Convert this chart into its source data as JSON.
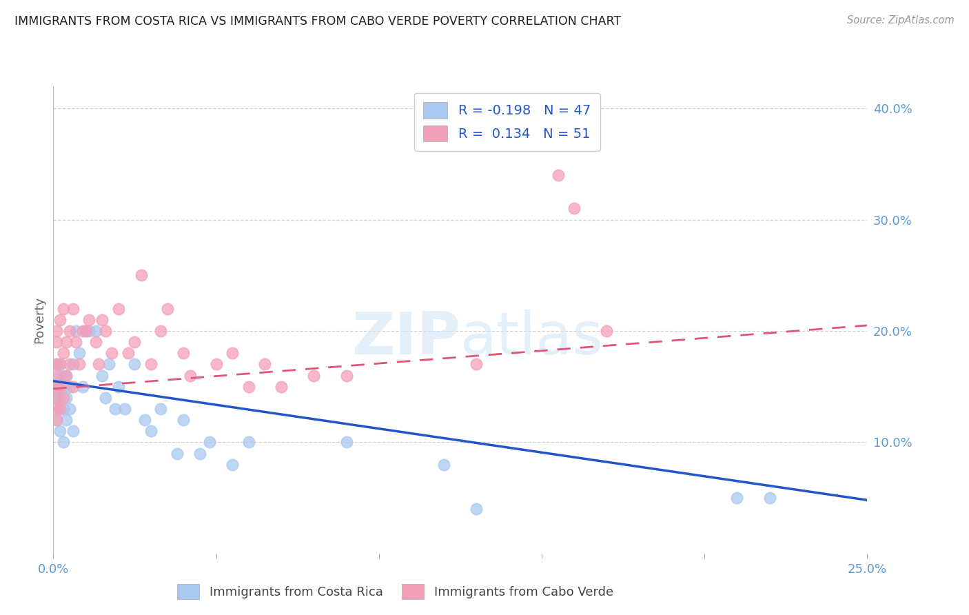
{
  "title": "IMMIGRANTS FROM COSTA RICA VS IMMIGRANTS FROM CABO VERDE POVERTY CORRELATION CHART",
  "source": "Source: ZipAtlas.com",
  "ylabel": "Poverty",
  "xlim": [
    0.0,
    0.25
  ],
  "ylim": [
    0.0,
    0.42
  ],
  "costa_rica_color": "#a8c8ef",
  "cabo_verde_color": "#f4a0b8",
  "costa_rica_line_color": "#2255cc",
  "cabo_verde_line_color": "#e05575",
  "legend_label_1": "Immigrants from Costa Rica",
  "legend_label_2": "Immigrants from Cabo Verde",
  "watermark_zip": "ZIP",
  "watermark_atlas": "atlas",
  "background_color": "#ffffff",
  "grid_color": "#cccccc",
  "axis_label_color": "#5b9bd5",
  "title_color": "#222222",
  "costa_rica_R": -0.198,
  "costa_rica_N": 47,
  "cabo_verde_R": 0.134,
  "cabo_verde_N": 51,
  "cr_trend_x0": 0.0,
  "cr_trend_y0": 0.155,
  "cr_trend_x1": 0.25,
  "cr_trend_y1": 0.048,
  "cv_trend_x0": 0.0,
  "cv_trend_y0": 0.148,
  "cv_trend_x1": 0.25,
  "cv_trend_y1": 0.205,
  "cr_x": [
    0.001,
    0.001,
    0.001,
    0.001,
    0.002,
    0.002,
    0.002,
    0.002,
    0.002,
    0.003,
    0.003,
    0.003,
    0.003,
    0.004,
    0.004,
    0.004,
    0.005,
    0.005,
    0.006,
    0.006,
    0.007,
    0.008,
    0.009,
    0.01,
    0.011,
    0.013,
    0.015,
    0.016,
    0.017,
    0.019,
    0.02,
    0.022,
    0.025,
    0.028,
    0.03,
    0.033,
    0.038,
    0.04,
    0.045,
    0.048,
    0.055,
    0.06,
    0.09,
    0.12,
    0.13,
    0.21,
    0.22
  ],
  "cr_y": [
    0.14,
    0.15,
    0.17,
    0.12,
    0.16,
    0.13,
    0.11,
    0.14,
    0.17,
    0.15,
    0.13,
    0.1,
    0.16,
    0.14,
    0.12,
    0.16,
    0.15,
    0.13,
    0.17,
    0.11,
    0.2,
    0.18,
    0.15,
    0.2,
    0.2,
    0.2,
    0.16,
    0.14,
    0.17,
    0.13,
    0.15,
    0.13,
    0.17,
    0.12,
    0.11,
    0.13,
    0.09,
    0.12,
    0.09,
    0.1,
    0.08,
    0.1,
    0.1,
    0.08,
    0.04,
    0.05,
    0.05
  ],
  "cv_x": [
    0.001,
    0.001,
    0.001,
    0.001,
    0.001,
    0.001,
    0.001,
    0.001,
    0.002,
    0.002,
    0.002,
    0.002,
    0.003,
    0.003,
    0.003,
    0.004,
    0.004,
    0.005,
    0.005,
    0.006,
    0.006,
    0.007,
    0.008,
    0.009,
    0.01,
    0.011,
    0.013,
    0.014,
    0.015,
    0.016,
    0.018,
    0.02,
    0.023,
    0.025,
    0.027,
    0.03,
    0.033,
    0.035,
    0.04,
    0.042,
    0.05,
    0.055,
    0.06,
    0.065,
    0.07,
    0.08,
    0.09,
    0.13,
    0.155,
    0.16,
    0.17
  ],
  "cv_y": [
    0.13,
    0.15,
    0.17,
    0.19,
    0.14,
    0.12,
    0.16,
    0.2,
    0.13,
    0.17,
    0.21,
    0.15,
    0.22,
    0.18,
    0.14,
    0.19,
    0.16,
    0.17,
    0.2,
    0.15,
    0.22,
    0.19,
    0.17,
    0.2,
    0.2,
    0.21,
    0.19,
    0.17,
    0.21,
    0.2,
    0.18,
    0.22,
    0.18,
    0.19,
    0.25,
    0.17,
    0.2,
    0.22,
    0.18,
    0.16,
    0.17,
    0.18,
    0.15,
    0.17,
    0.15,
    0.16,
    0.16,
    0.17,
    0.34,
    0.31,
    0.2
  ]
}
